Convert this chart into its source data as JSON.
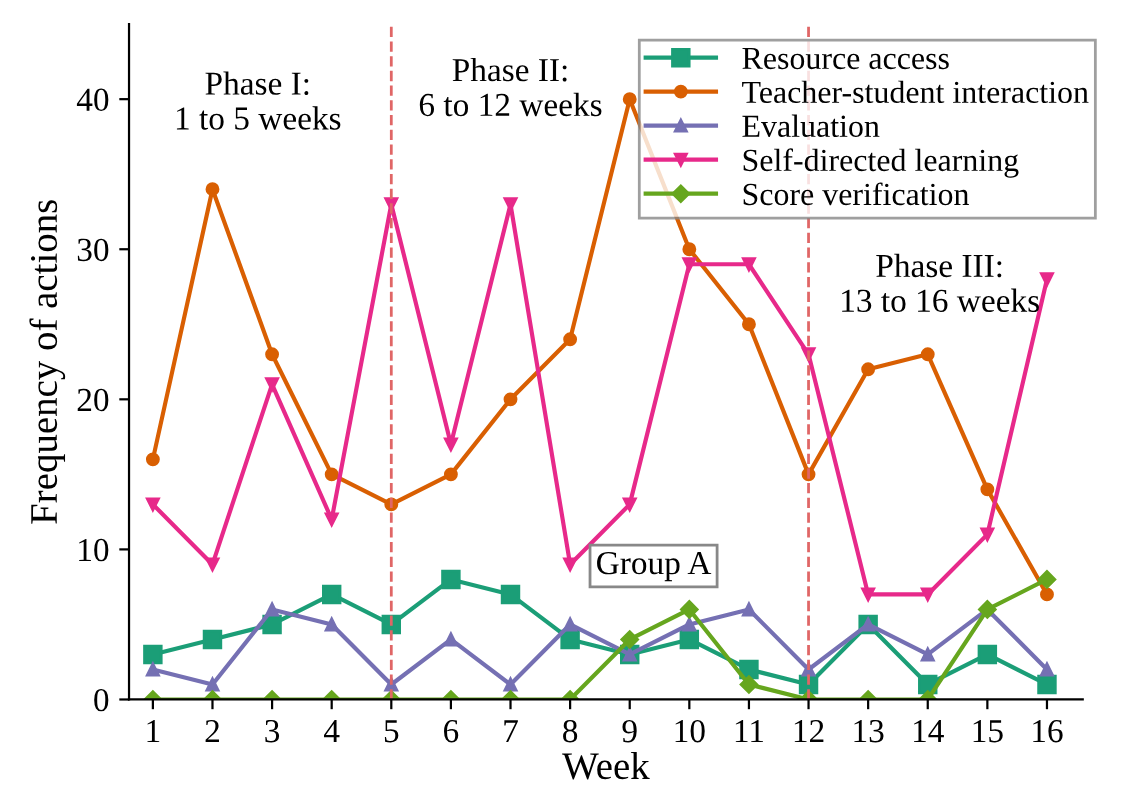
{
  "chart_data": {
    "type": "line",
    "xlabel": "Week",
    "ylabel": "Frequency of actions",
    "x": [
      1,
      2,
      3,
      4,
      5,
      6,
      7,
      8,
      9,
      10,
      11,
      12,
      13,
      14,
      15,
      16
    ],
    "series": [
      {
        "name": "Resource access",
        "color": "#1b9e77",
        "marker": "square",
        "values": [
          3,
          4,
          5,
          7,
          5,
          8,
          7,
          4,
          3,
          4,
          2,
          1,
          5,
          1,
          3,
          1
        ]
      },
      {
        "name": "Teacher-student interaction",
        "color": "#d95f02",
        "marker": "circle",
        "values": [
          16,
          34,
          23,
          15,
          13,
          15,
          20,
          24,
          40,
          30,
          25,
          15,
          22,
          23,
          14,
          7
        ]
      },
      {
        "name": "Evaluation",
        "color": "#7570b3",
        "marker": "triangle",
        "values": [
          2,
          1,
          6,
          5,
          1,
          4,
          1,
          5,
          3,
          5,
          6,
          2,
          5,
          3,
          6,
          2
        ]
      },
      {
        "name": "Self-directed learning",
        "color": "#e7298a",
        "marker": "triangle_down",
        "values": [
          13,
          9,
          21,
          12,
          33,
          17,
          33,
          9,
          13,
          29,
          29,
          23,
          7,
          7,
          11,
          28
        ]
      },
      {
        "name": "Score verification",
        "color": "#66a61e",
        "marker": "diamond",
        "values": [
          0,
          0,
          0,
          0,
          0,
          0,
          0,
          0,
          4,
          6,
          1,
          0,
          0,
          0,
          6,
          8
        ]
      }
    ],
    "xlim": [
      0.6,
      16.6
    ],
    "ylim": [
      0,
      45
    ],
    "xticks": [
      1,
      2,
      3,
      4,
      5,
      6,
      7,
      8,
      9,
      10,
      11,
      12,
      13,
      14,
      15,
      16
    ],
    "yticks": [
      0,
      10,
      20,
      30,
      40
    ],
    "ref_lines": [
      {
        "axis": "x",
        "value": 5,
        "color": "#e06666",
        "line_style": "dashed"
      },
      {
        "axis": "x",
        "value": 12,
        "color": "#e06666",
        "line_style": "dashed"
      }
    ],
    "annotations": [
      "Phase I:\n1 to 5 weeks",
      "Phase II:\n6 to 12 weeks",
      "Phase III:\n13 to 16 weeks",
      "Group A"
    ],
    "legend": "top right",
    "grid": false,
    "line_style": "solid"
  }
}
